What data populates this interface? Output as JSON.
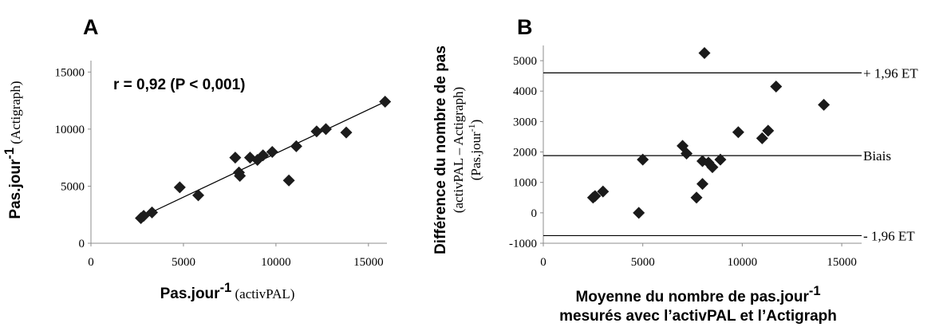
{
  "chart_data": [
    {
      "type": "scatter",
      "panel_letter": "A",
      "annotation": "r = 0,92 (P < 0,001)",
      "xlabel": {
        "main": "Pas.jour",
        "sup": "-1",
        "suffix": " (activPAL)"
      },
      "ylabel": {
        "main": "Pas.jour",
        "sup": "-1",
        "suffix": " (Actigraph)"
      },
      "xlim": [
        0,
        16000
      ],
      "ylim": [
        0,
        16000
      ],
      "xticks": [
        0,
        5000,
        10000,
        15000
      ],
      "yticks": [
        0,
        5000,
        10000,
        15000
      ],
      "grid": false,
      "points": [
        {
          "x": 2700,
          "y": 2200
        },
        {
          "x": 2850,
          "y": 2400
        },
        {
          "x": 3300,
          "y": 2700
        },
        {
          "x": 4800,
          "y": 4900
        },
        {
          "x": 5800,
          "y": 4200
        },
        {
          "x": 7800,
          "y": 7500
        },
        {
          "x": 8000,
          "y": 6200
        },
        {
          "x": 8050,
          "y": 5900
        },
        {
          "x": 8600,
          "y": 7500
        },
        {
          "x": 9000,
          "y": 7300
        },
        {
          "x": 9300,
          "y": 7700
        },
        {
          "x": 9800,
          "y": 8000
        },
        {
          "x": 10700,
          "y": 5500
        },
        {
          "x": 11100,
          "y": 8500
        },
        {
          "x": 12200,
          "y": 9800
        },
        {
          "x": 12700,
          "y": 10000
        },
        {
          "x": 13800,
          "y": 9700
        },
        {
          "x": 15900,
          "y": 12400
        }
      ],
      "fit_line": [
        {
          "x": 2600,
          "y": 2200
        },
        {
          "x": 15900,
          "y": 12400
        }
      ]
    },
    {
      "type": "scatter",
      "panel_letter": "B",
      "xlabel": {
        "line1_main": "Moyenne du nombre de pas.jour",
        "line1_sup": "-1",
        "line2": "mesurés avec l’activPAL et l’Actigraph"
      },
      "ylabel": {
        "line1": "Différence du nombre de pas",
        "line2": "(activPAL – Actigraph)",
        "line3_main": "(Pas.jour",
        "line3_sup": "-1",
        "line3_end": ")"
      },
      "xlim": [
        0,
        16000
      ],
      "ylim": [
        -1000,
        5500
      ],
      "xticks": [
        0,
        5000,
        10000,
        15000
      ],
      "yticks": [
        -1000,
        0,
        1000,
        2000,
        3000,
        4000,
        5000
      ],
      "grid": false,
      "reference_lines": [
        {
          "label": "+ 1,96 ET",
          "y": 4600
        },
        {
          "label": "Biais",
          "y": 1880
        },
        {
          "label": "- 1,96 ET",
          "y": -750
        }
      ],
      "points": [
        {
          "x": 2500,
          "y": 500
        },
        {
          "x": 2600,
          "y": 550
        },
        {
          "x": 3000,
          "y": 700
        },
        {
          "x": 4800,
          "y": 0
        },
        {
          "x": 5000,
          "y": 1750
        },
        {
          "x": 7000,
          "y": 2200
        },
        {
          "x": 7200,
          "y": 1950
        },
        {
          "x": 7700,
          "y": 500
        },
        {
          "x": 8000,
          "y": 1700
        },
        {
          "x": 8000,
          "y": 950
        },
        {
          "x": 8100,
          "y": 5250
        },
        {
          "x": 8300,
          "y": 1650
        },
        {
          "x": 8500,
          "y": 1500
        },
        {
          "x": 8900,
          "y": 1750
        },
        {
          "x": 9800,
          "y": 2650
        },
        {
          "x": 11000,
          "y": 2450
        },
        {
          "x": 11300,
          "y": 2700
        },
        {
          "x": 11700,
          "y": 4150
        },
        {
          "x": 14100,
          "y": 3550
        }
      ]
    }
  ]
}
